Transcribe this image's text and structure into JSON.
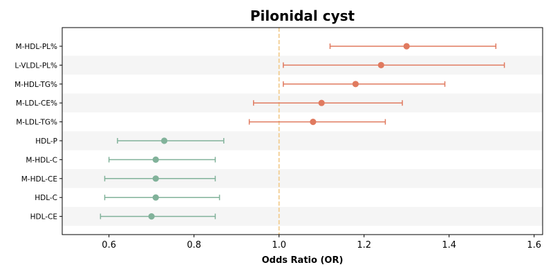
{
  "chart_data": {
    "type": "forest",
    "title": "Pilonidal cyst",
    "xlabel": "Odds Ratio (OR)",
    "xlim": [
      0.49,
      1.62
    ],
    "xticks": [
      0.6,
      0.8,
      1.0,
      1.2,
      1.4,
      1.6
    ],
    "xtick_labels": [
      "0.6",
      "0.8",
      "1.0",
      "1.2",
      "1.4",
      "1.6"
    ],
    "reference_line": 1.0,
    "row_shading": "alternating",
    "colors": {
      "risk": "#e07a5f",
      "protective": "#81b29a",
      "reference": "#f2cc8f",
      "shade": "#f5f5f5"
    },
    "rows": [
      {
        "label": "M-HDL-PL%",
        "or": 1.3,
        "ci_low": 1.12,
        "ci_high": 1.51,
        "group": "risk"
      },
      {
        "label": "L-VLDL-PL%",
        "or": 1.24,
        "ci_low": 1.01,
        "ci_high": 1.53,
        "group": "risk"
      },
      {
        "label": "M-HDL-TG%",
        "or": 1.18,
        "ci_low": 1.01,
        "ci_high": 1.39,
        "group": "risk"
      },
      {
        "label": "M-LDL-CE%",
        "or": 1.1,
        "ci_low": 0.94,
        "ci_high": 1.29,
        "group": "risk"
      },
      {
        "label": "M-LDL-TG%",
        "or": 1.08,
        "ci_low": 0.93,
        "ci_high": 1.25,
        "group": "risk"
      },
      {
        "label": "HDL-P",
        "or": 0.73,
        "ci_low": 0.62,
        "ci_high": 0.87,
        "group": "protective"
      },
      {
        "label": "M-HDL-C",
        "or": 0.71,
        "ci_low": 0.6,
        "ci_high": 0.85,
        "group": "protective"
      },
      {
        "label": "M-HDL-CE",
        "or": 0.71,
        "ci_low": 0.59,
        "ci_high": 0.85,
        "group": "protective"
      },
      {
        "label": "HDL-C",
        "or": 0.71,
        "ci_low": 0.59,
        "ci_high": 0.86,
        "group": "protective"
      },
      {
        "label": "HDL-CE",
        "or": 0.7,
        "ci_low": 0.58,
        "ci_high": 0.85,
        "group": "protective"
      }
    ]
  }
}
